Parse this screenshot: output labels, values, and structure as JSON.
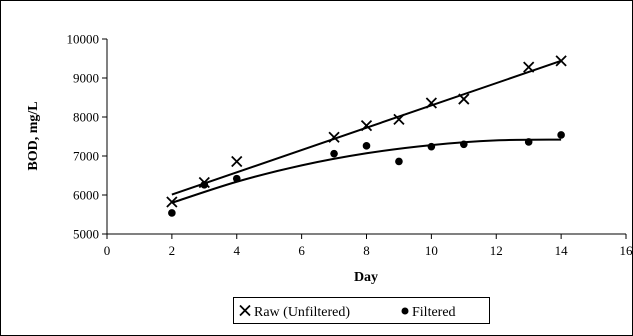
{
  "chart_data": {
    "type": "scatter",
    "title": "",
    "xlabel": "Day",
    "ylabel": "BOD, mg/L",
    "xlim": [
      0,
      16
    ],
    "ylim": [
      5000,
      10000
    ],
    "xticks": [
      0,
      2,
      4,
      6,
      8,
      10,
      12,
      14,
      16
    ],
    "yticks": [
      5000,
      6000,
      7000,
      8000,
      9000,
      10000
    ],
    "xtick_labels": [
      "0",
      "2",
      "4",
      "6",
      "8",
      "10",
      "12",
      "14",
      "16"
    ],
    "ytick_labels": [
      "5000",
      "6000",
      "7000",
      "8000",
      "9000",
      "10000"
    ],
    "grid": false,
    "legend_position": "bottom",
    "series": [
      {
        "name": "Raw (Unfiltered)",
        "marker": "x",
        "color": "#000000",
        "x": [
          2,
          3,
          4,
          7,
          8,
          9,
          10,
          11,
          13,
          14
        ],
        "y": [
          5820,
          6320,
          6860,
          7480,
          7780,
          7940,
          8360,
          8460,
          9280,
          9440
        ],
        "trendline": {
          "type": "linear",
          "x": [
            2,
            14
          ],
          "y": [
            6010,
            9440
          ]
        }
      },
      {
        "name": "Filtered",
        "marker": "circle",
        "color": "#000000",
        "x": [
          2,
          3,
          4,
          7,
          8,
          9,
          10,
          11,
          13,
          14
        ],
        "y": [
          5540,
          6260,
          6420,
          7060,
          7260,
          6860,
          7240,
          7300,
          7360,
          7540
        ],
        "trendline": {
          "type": "polynomial",
          "x": [
            2,
            4,
            6,
            8,
            10,
            12,
            14
          ],
          "y": [
            5800,
            6340,
            6760,
            7070,
            7280,
            7400,
            7420
          ]
        }
      }
    ]
  }
}
